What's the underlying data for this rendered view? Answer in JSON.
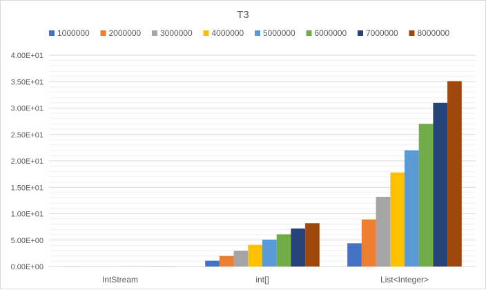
{
  "chart_data": {
    "type": "bar",
    "title": "T3",
    "xlabel": "",
    "ylabel": "",
    "categories": [
      "IntStream",
      "int[]",
      "List<Integer>"
    ],
    "y_ticks": [
      "0.00E+00",
      "5.00E+00",
      "1.00E+01",
      "1.50E+01",
      "2.00E+01",
      "2.50E+01",
      "3.00E+01",
      "3.50E+01",
      "4.00E+01"
    ],
    "ylim": [
      0,
      40
    ],
    "grid": true,
    "legend_position": "top",
    "series": [
      {
        "name": "1000000",
        "color": "#4472C4",
        "values": [
          0.02,
          1.1,
          4.4
        ]
      },
      {
        "name": "2000000",
        "color": "#ED7D31",
        "values": [
          0.02,
          2.0,
          8.9
        ]
      },
      {
        "name": "3000000",
        "color": "#A5A5A5",
        "values": [
          0.02,
          3.0,
          13.2
        ]
      },
      {
        "name": "4000000",
        "color": "#FFC000",
        "values": [
          0.02,
          4.1,
          17.8
        ]
      },
      {
        "name": "5000000",
        "color": "#5B9BD5",
        "values": [
          0.02,
          5.1,
          22.0
        ]
      },
      {
        "name": "6000000",
        "color": "#70AD47",
        "values": [
          0.02,
          6.1,
          27.0
        ]
      },
      {
        "name": "7000000",
        "color": "#264478",
        "values": [
          0.02,
          7.2,
          31.0
        ]
      },
      {
        "name": "8000000",
        "color": "#9E480E",
        "values": [
          0.02,
          8.2,
          35.1
        ]
      }
    ]
  }
}
